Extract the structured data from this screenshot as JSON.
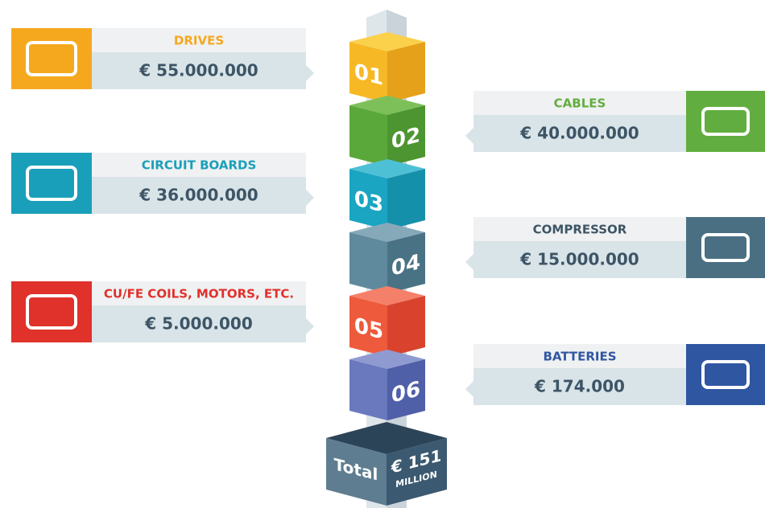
{
  "items": [
    {
      "number": "01",
      "label": "DRIVES",
      "value": "€ 55.000.000"
    },
    {
      "number": "02",
      "label": "CABLES",
      "value": "€ 40.000.000"
    },
    {
      "number": "03",
      "label": "CIRCUIT BOARDS",
      "value": "€ 36.000.000"
    },
    {
      "number": "04",
      "label": "COMPRESSOR",
      "value": "€ 15.000.000"
    },
    {
      "number": "05",
      "label": "CU/FE COILS, MOTORS, ETC.",
      "value": "€ 5.000.000"
    },
    {
      "number": "06",
      "label": "BATTERIES",
      "value": "€ 174.000"
    }
  ],
  "total": {
    "label": "Total",
    "value": "€ 151",
    "unit": "MILLION"
  }
}
